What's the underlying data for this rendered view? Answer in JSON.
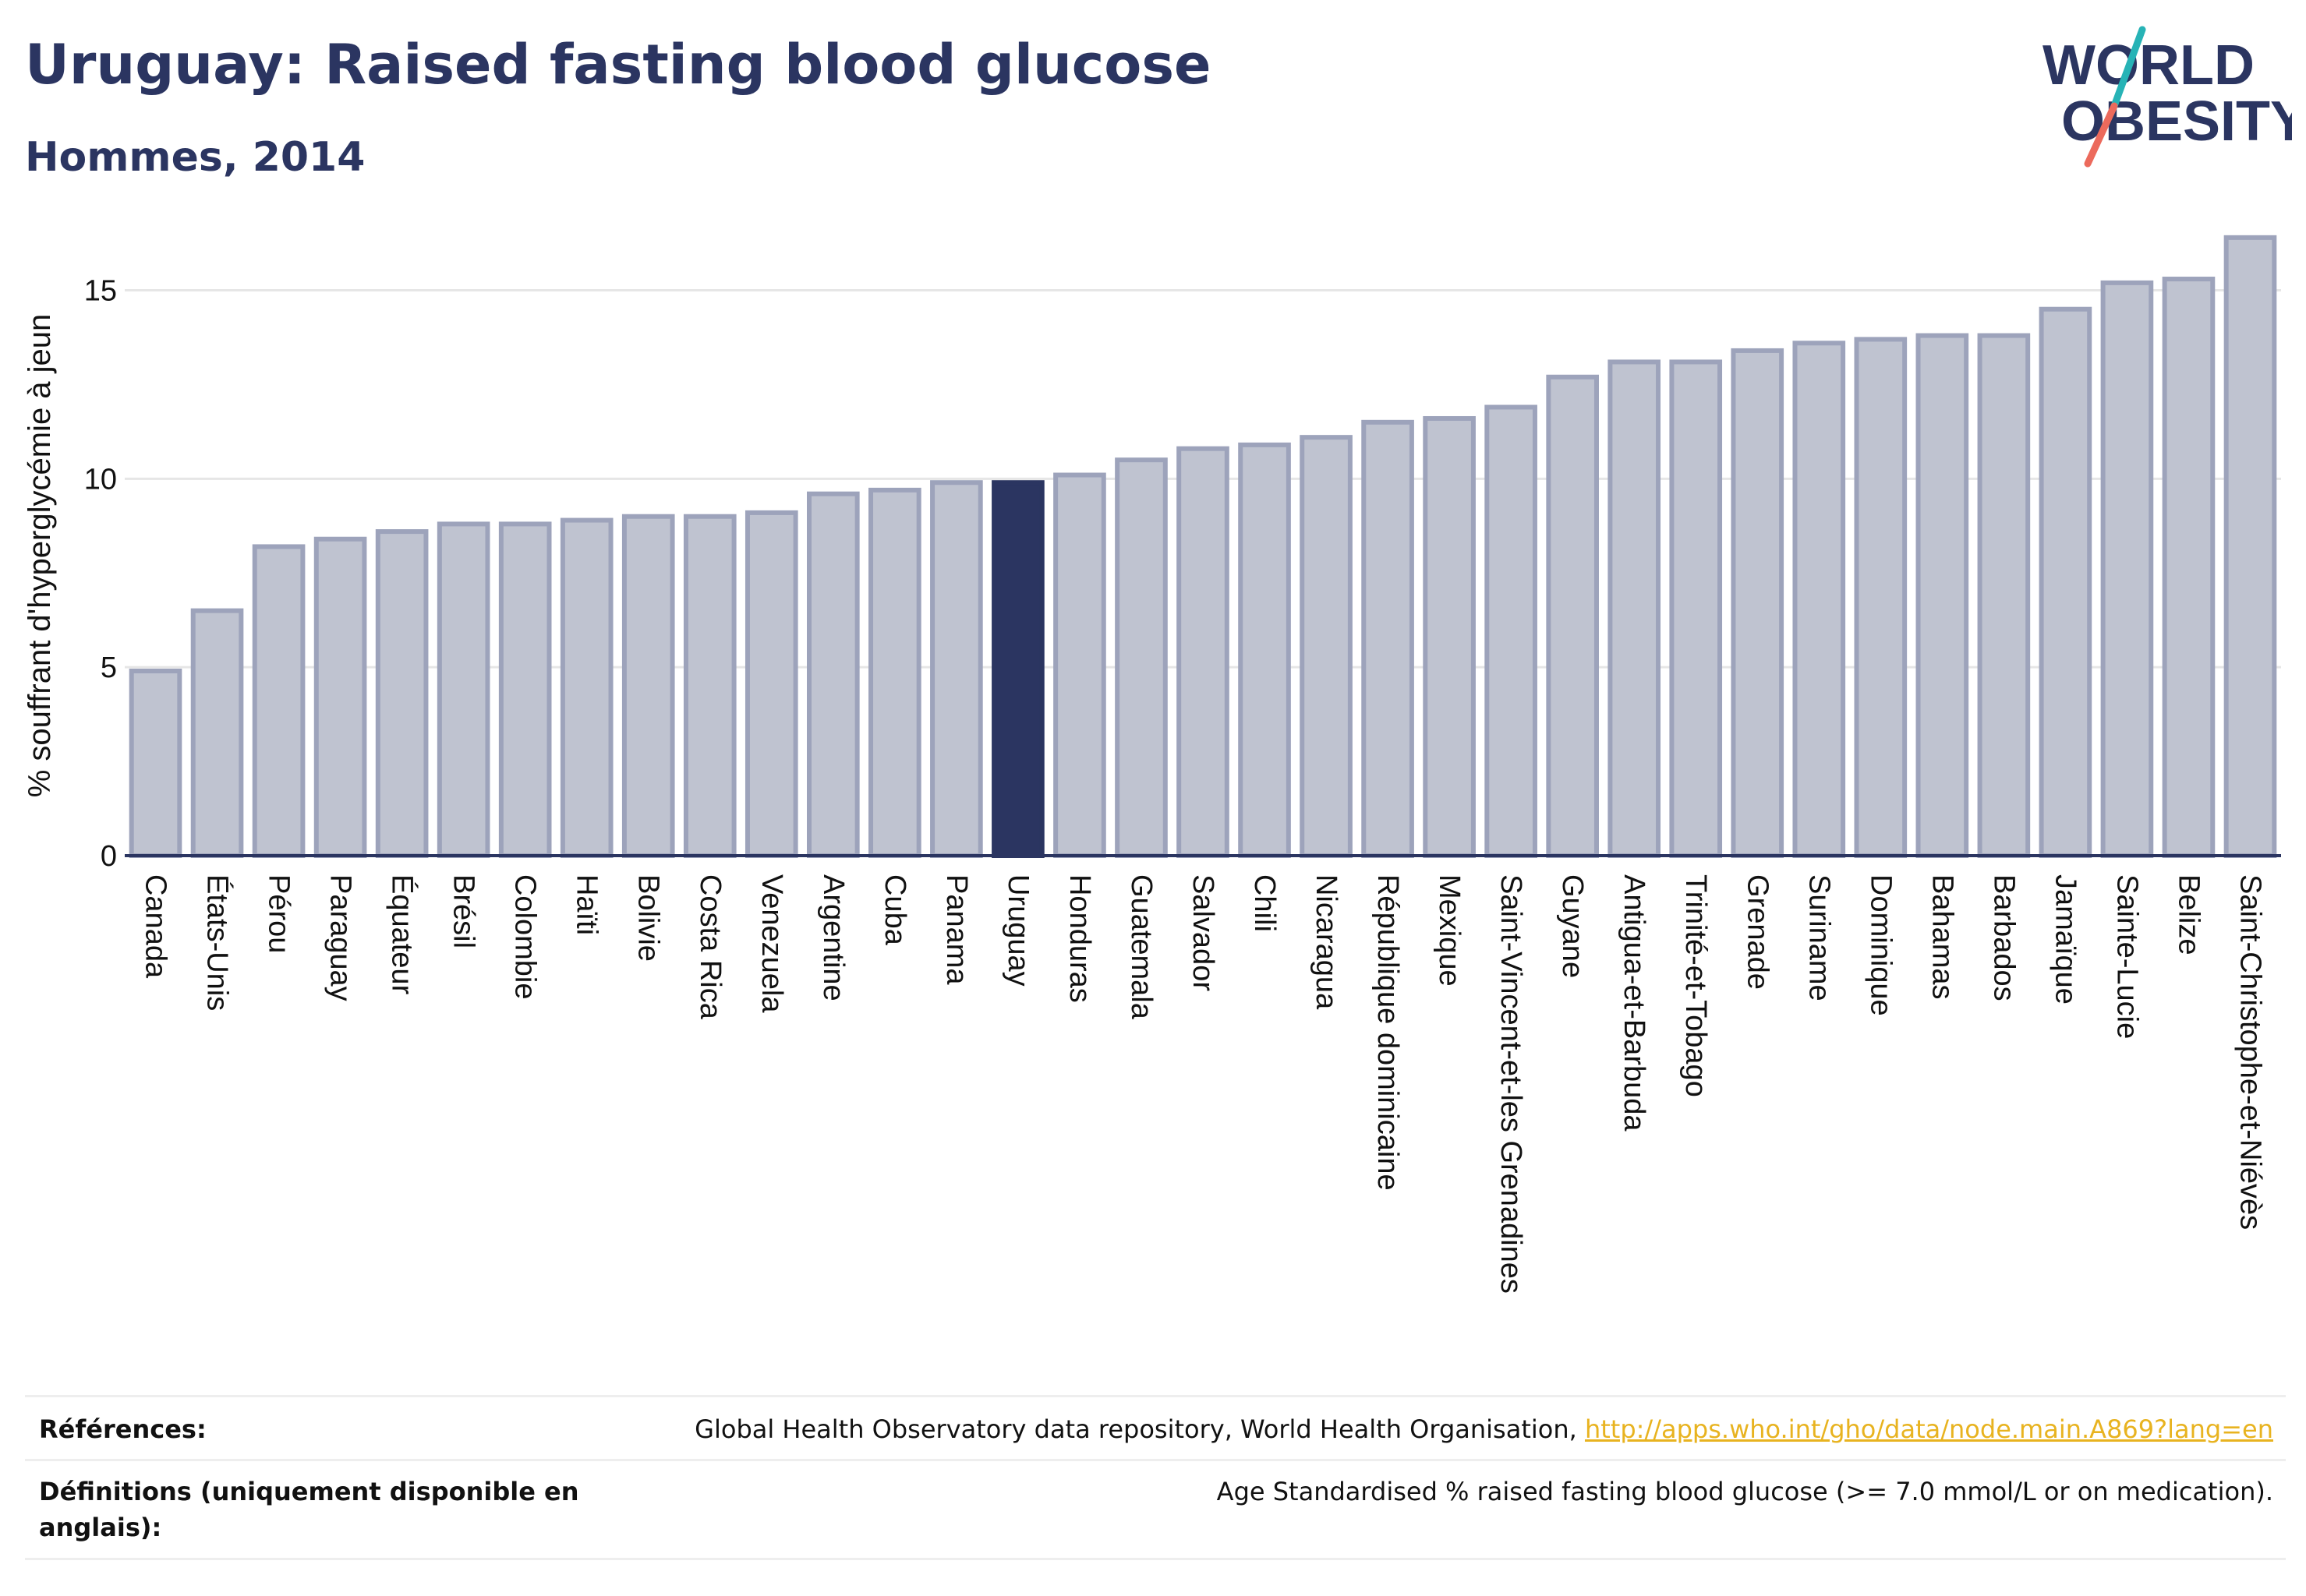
{
  "header": {
    "title": "Uruguay: Raised fasting blood glucose",
    "subtitle": "Hommes, 2014"
  },
  "logo": {
    "line1": "WORLD",
    "line2": "OBESITY",
    "name": "world-obesity-logo"
  },
  "colors": {
    "highlight": "#2b3561",
    "bar_fill": "#bfc3d0",
    "bar_stroke": "#9da3bb",
    "text": "#2b3561",
    "link": "#e8b320",
    "logo_teal": "#27b3b6",
    "logo_coral": "#ec6a5c"
  },
  "chart_data": {
    "type": "bar",
    "ylabel": "% souffrant d'hyperglycémie à jeun",
    "xlabel": "",
    "ylim": [
      0,
      16.5
    ],
    "yticks": [
      0,
      5,
      10,
      15
    ],
    "grid": true,
    "highlight": "Uruguay",
    "categories": [
      "Canada",
      "États-Unis",
      "Pérou",
      "Paraguay",
      "Équateur",
      "Brésil",
      "Colombie",
      "Haïti",
      "Bolivie",
      "Costa Rica",
      "Venezuela",
      "Argentine",
      "Cuba",
      "Panama",
      "Uruguay",
      "Honduras",
      "Guatemala",
      "Salvador",
      "Chili",
      "Nicaragua",
      "République dominicaine",
      "Mexique",
      "Saint-Vincent-et-les Grenadines",
      "Guyane",
      "Antigua-et-Barbuda",
      "Trinité-et-Tobago",
      "Grenade",
      "Suriname",
      "Dominique",
      "Bahamas",
      "Barbados",
      "Jamaïque",
      "Sainte-Lucie",
      "Belize",
      "Saint-Christophe-et-Niévès"
    ],
    "values": [
      4.9,
      6.5,
      8.2,
      8.4,
      8.6,
      8.8,
      8.8,
      8.9,
      9.0,
      9.0,
      9.1,
      9.6,
      9.7,
      9.9,
      9.9,
      10.1,
      10.5,
      10.8,
      10.9,
      11.1,
      11.5,
      11.6,
      11.9,
      12.7,
      13.1,
      13.1,
      13.4,
      13.6,
      13.7,
      13.8,
      13.8,
      14.5,
      15.2,
      15.3,
      16.4
    ]
  },
  "footer": {
    "references_label": "Références:",
    "references_text": "Global Health Observatory data repository, World Health Organisation, ",
    "references_link": "http://apps.who.int/gho/data/node.main.A869?lang=en",
    "definitions_label": "Définitions (uniquement disponible en anglais):",
    "definitions_text": "Age Standardised % raised fasting blood glucose (>= 7.0 mmol/L or on medication)."
  }
}
